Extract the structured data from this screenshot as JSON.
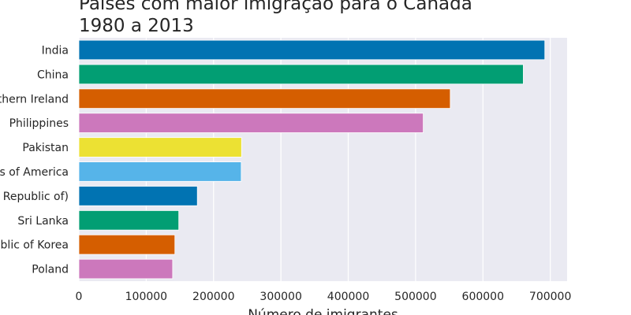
{
  "chart_data": {
    "type": "bar",
    "orientation": "horizontal",
    "title_lines": [
      "Países com maior imigração para o Canada",
      "1980 a 2013"
    ],
    "xlabel": "Número de imigrantes",
    "ylabel": "",
    "xlim": [
      0,
      725000
    ],
    "xticks": [
      0,
      100000,
      200000,
      300000,
      400000,
      500000,
      600000,
      700000
    ],
    "xtick_labels": [
      "0",
      "100000",
      "200000",
      "300000",
      "400000",
      "500000",
      "600000",
      "700000"
    ],
    "grid": true,
    "legend": "none",
    "categories": [
      "India",
      "China",
      "United Kingdom of Great Britain and Northern Ireland",
      "Philippines",
      "Pakistan",
      "United States of America",
      "Iran (Islamic Republic of)",
      "Sri Lanka",
      "Republic of Korea",
      "Poland"
    ],
    "values": [
      691904,
      659962,
      551500,
      511391,
      241600,
      241122,
      175923,
      148358,
      142581,
      139241
    ],
    "colors": [
      "#0173b2",
      "#029e73",
      "#d55e00",
      "#cc78bc",
      "#ece133",
      "#56b4e9",
      "#0173b2",
      "#029e73",
      "#d55e00",
      "#cc78bc"
    ],
    "background_color": "#eaeaf2"
  }
}
